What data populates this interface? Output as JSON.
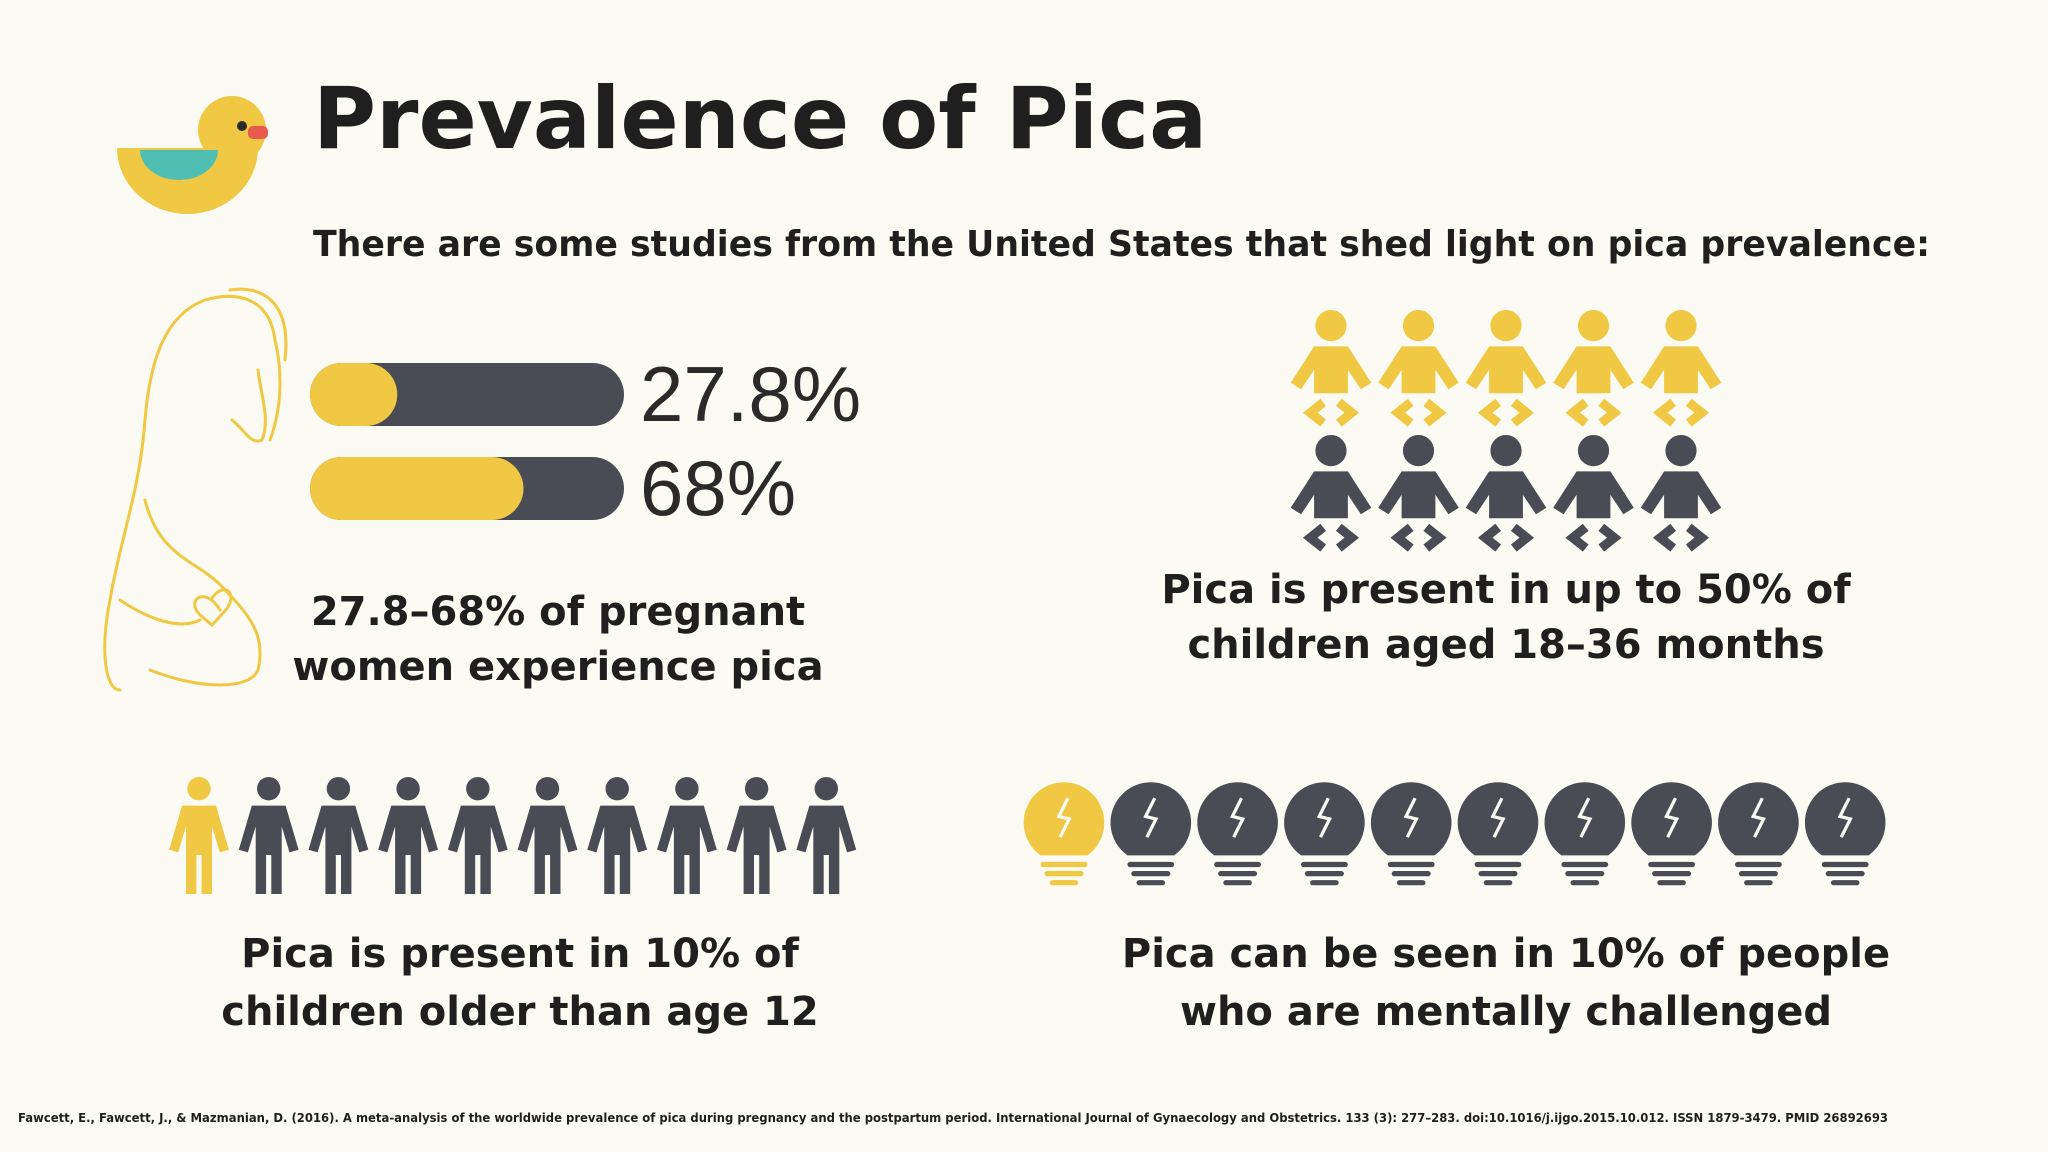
{
  "title": "Prevalence of Pica",
  "subtitle": "There are some studies from the United States that shed light on pica prevalence:",
  "pregnancy": {
    "bars": [
      {
        "value": 27.8,
        "label": "27.8%"
      },
      {
        "value": 68,
        "label": "68%"
      }
    ],
    "xlim": [
      0,
      100
    ],
    "caption": [
      "27.8–68% of pregnant",
      "women experience pica"
    ]
  },
  "children_toddlers": {
    "highlighted": 5,
    "total": 10,
    "caption": [
      "Pica is present in up to 50% of",
      "children aged 18–36 months"
    ]
  },
  "children_older": {
    "highlighted": 1,
    "total": 10,
    "caption": [
      "Pica is present in 10% of",
      "children older than age 12"
    ]
  },
  "mentally_challenged": {
    "highlighted": 1,
    "total": 10,
    "caption": [
      "Pica can be seen in 10% of people",
      "who are mentally challenged"
    ]
  },
  "citation": "Fawcett, E., Fawcett, J., & Mazmanian, D. (2016). A meta-analysis of the worldwide prevalence of pica during pregnancy and the postpartum period. International Journal of Gynaecology and Obstetrics. 133 (3): 277–283. doi:10.1016/j.ijgo.2015.10.012. ISSN 1879-3479. PMID 26892693"
}
